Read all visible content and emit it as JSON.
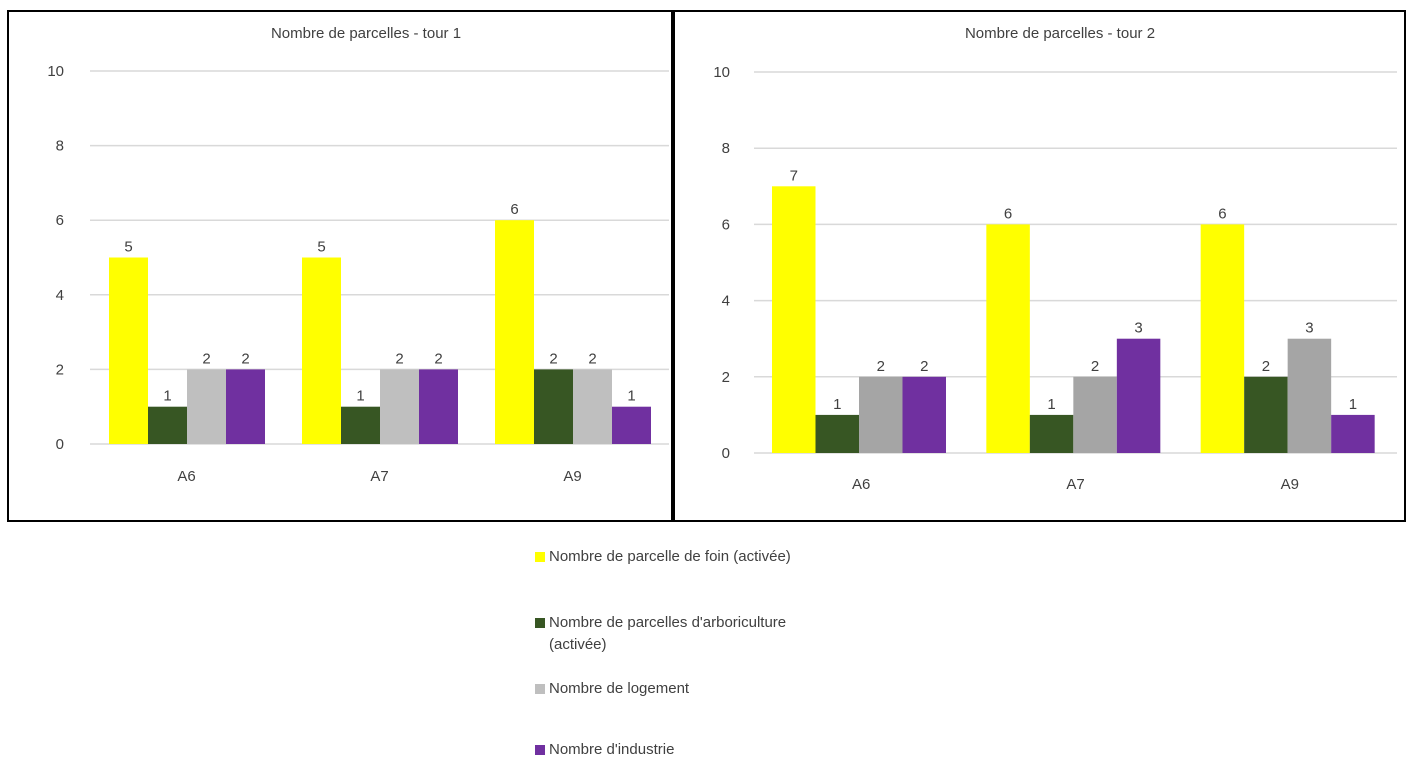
{
  "colors": {
    "foin": "#FFFF00",
    "arbo": "#375623",
    "logement_t1": "#BFBFBF",
    "logement_t2": "#A5A5A5",
    "industrie": "#7030A0",
    "grid": "#D9D9D9",
    "text": "#404040"
  },
  "legend": [
    {
      "label": "Nombre de parcelle de foin (activée)",
      "color_key": "foin"
    },
    {
      "label": "Nombre de parcelles d'arboriculture (activée)",
      "color_key": "arbo"
    },
    {
      "label": "Nombre de logement",
      "color_key": "logement_t1"
    },
    {
      "label": "Nombre d'industrie",
      "color_key": "industrie"
    }
  ],
  "chart_data": [
    {
      "type": "bar",
      "title": "Nombre de parcelles - tour 1",
      "categories": [
        "A6",
        "A7",
        "A9"
      ],
      "ylim": [
        0,
        10
      ],
      "yticks": [
        0,
        2,
        4,
        6,
        8,
        10
      ],
      "grid": true,
      "data_labels": true,
      "series": [
        {
          "name": "Nombre de parcelle de foin (activée)",
          "color": "#FFFF00",
          "values": [
            5,
            5,
            6
          ]
        },
        {
          "name": "Nombre de parcelles d'arboriculture (activée)",
          "color": "#375623",
          "values": [
            1,
            1,
            2
          ]
        },
        {
          "name": "Nombre de logement",
          "color": "#BFBFBF",
          "values": [
            2,
            2,
            2
          ]
        },
        {
          "name": "Nombre d'industrie",
          "color": "#7030A0",
          "values": [
            2,
            2,
            1
          ]
        }
      ]
    },
    {
      "type": "bar",
      "title": "Nombre de parcelles - tour 2",
      "categories": [
        "A6",
        "A7",
        "A9"
      ],
      "ylim": [
        0,
        10
      ],
      "yticks": [
        0,
        2,
        4,
        6,
        8,
        10
      ],
      "grid": true,
      "data_labels": true,
      "series": [
        {
          "name": "Nombre de parcelle de foin (activée)",
          "color": "#FFFF00",
          "values": [
            7,
            6,
            6
          ]
        },
        {
          "name": "Nombre de parcelles d'arboriculture (activée)",
          "color": "#375623",
          "values": [
            1,
            1,
            2
          ]
        },
        {
          "name": "Nombre de logement",
          "color": "#A5A5A5",
          "values": [
            2,
            2,
            3
          ]
        },
        {
          "name": "Nombre d'industrie",
          "color": "#7030A0",
          "values": [
            2,
            3,
            1
          ]
        }
      ]
    }
  ]
}
